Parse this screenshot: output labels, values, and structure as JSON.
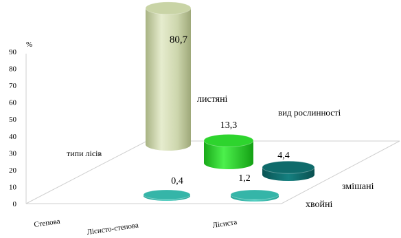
{
  "chart_data": {
    "type": "bar",
    "subtype": "3d-cylinder",
    "unit_label": "%",
    "ylim": [
      0,
      90
    ],
    "y_ticks": [
      0,
      10,
      20,
      30,
      40,
      50,
      60,
      70,
      80,
      90
    ],
    "x_categories": [
      "Степова",
      "Лісисто-степова",
      "Лісиста"
    ],
    "depth_categories": [
      "листяні",
      "змішані",
      "хвойні"
    ],
    "x_axis_title": "типи лісів",
    "depth_axis_title": "вид рослинності",
    "bars": [
      {
        "series": "листяні",
        "category": "Лісиста",
        "value": 80.7,
        "label": "80,7",
        "color": "#c9d4a6"
      },
      {
        "series": "листяні",
        "category": "Лісисто-степова",
        "value": 13.3,
        "label": "13,3",
        "color": "#2ed42e"
      },
      {
        "series": "змішані",
        "category": "Лісиста",
        "value": 4.4,
        "label": "4,4",
        "color": "#0f6b6b"
      },
      {
        "series": "хвойні",
        "category": "Лісисто-степова",
        "value": 0.4,
        "label": "0,4",
        "color": "#35b5a8"
      },
      {
        "series": "хвойні",
        "category": "Лісиста",
        "value": 1.2,
        "label": "1,2",
        "color": "#35b5a8"
      }
    ],
    "grid": false,
    "legend": "none"
  }
}
